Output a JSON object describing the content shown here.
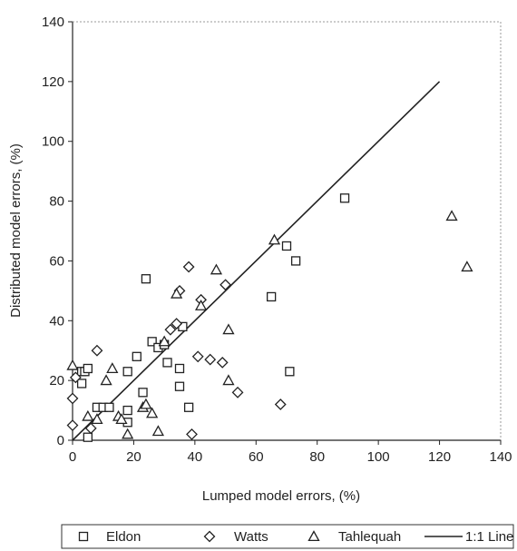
{
  "chart_data": {
    "type": "scatter",
    "title": "",
    "xlabel": "Lumped model errors, (%)",
    "ylabel": "Distributed model errors, (%)",
    "xlim": [
      0,
      140
    ],
    "ylim": [
      0,
      140
    ],
    "xticks": [
      "0",
      "20",
      "40",
      "60",
      "80",
      "100",
      "120",
      "140"
    ],
    "yticks": [
      "0",
      "20",
      "40",
      "60",
      "80",
      "100",
      "120",
      "140"
    ],
    "grid": false,
    "legend_position": "bottom",
    "series": [
      {
        "name": "Eldon",
        "marker": "square",
        "color": "#222222",
        "points": [
          [
            3,
            23
          ],
          [
            4,
            23
          ],
          [
            5,
            24
          ],
          [
            3,
            19
          ],
          [
            5,
            1
          ],
          [
            8,
            11
          ],
          [
            10,
            11
          ],
          [
            12,
            11
          ],
          [
            18,
            23
          ],
          [
            18,
            10
          ],
          [
            18,
            6
          ],
          [
            21,
            28
          ],
          [
            23,
            16
          ],
          [
            24,
            54
          ],
          [
            26,
            33
          ],
          [
            28,
            31
          ],
          [
            30,
            32
          ],
          [
            31,
            26
          ],
          [
            35,
            24
          ],
          [
            35,
            18
          ],
          [
            36,
            38
          ],
          [
            38,
            11
          ],
          [
            65,
            48
          ],
          [
            70,
            65
          ],
          [
            71,
            23
          ],
          [
            73,
            60
          ],
          [
            89,
            81
          ]
        ]
      },
      {
        "name": "Watts",
        "marker": "diamond",
        "color": "#222222",
        "points": [
          [
            0,
            5
          ],
          [
            0,
            14
          ],
          [
            1,
            21
          ],
          [
            6,
            4
          ],
          [
            8,
            30
          ],
          [
            32,
            37
          ],
          [
            34,
            39
          ],
          [
            35,
            50
          ],
          [
            38,
            58
          ],
          [
            39,
            2
          ],
          [
            41,
            28
          ],
          [
            42,
            47
          ],
          [
            45,
            27
          ],
          [
            49,
            26
          ],
          [
            50,
            52
          ],
          [
            54,
            16
          ],
          [
            68,
            12
          ]
        ]
      },
      {
        "name": "Tahlequah",
        "marker": "triangle",
        "color": "#222222",
        "points": [
          [
            0,
            25
          ],
          [
            5,
            8
          ],
          [
            8,
            7
          ],
          [
            11,
            20
          ],
          [
            13,
            24
          ],
          [
            15,
            8
          ],
          [
            16,
            7
          ],
          [
            18,
            2
          ],
          [
            23,
            11
          ],
          [
            24,
            12
          ],
          [
            26,
            9
          ],
          [
            28,
            3
          ],
          [
            30,
            33
          ],
          [
            34,
            49
          ],
          [
            42,
            45
          ],
          [
            47,
            57
          ],
          [
            51,
            20
          ],
          [
            51,
            37
          ],
          [
            66,
            67
          ],
          [
            124,
            75
          ],
          [
            129,
            58
          ]
        ]
      },
      {
        "name": "1:1 Line",
        "marker": "line",
        "color": "#222222",
        "points": [
          [
            0,
            0
          ],
          [
            120,
            120
          ]
        ]
      }
    ]
  }
}
